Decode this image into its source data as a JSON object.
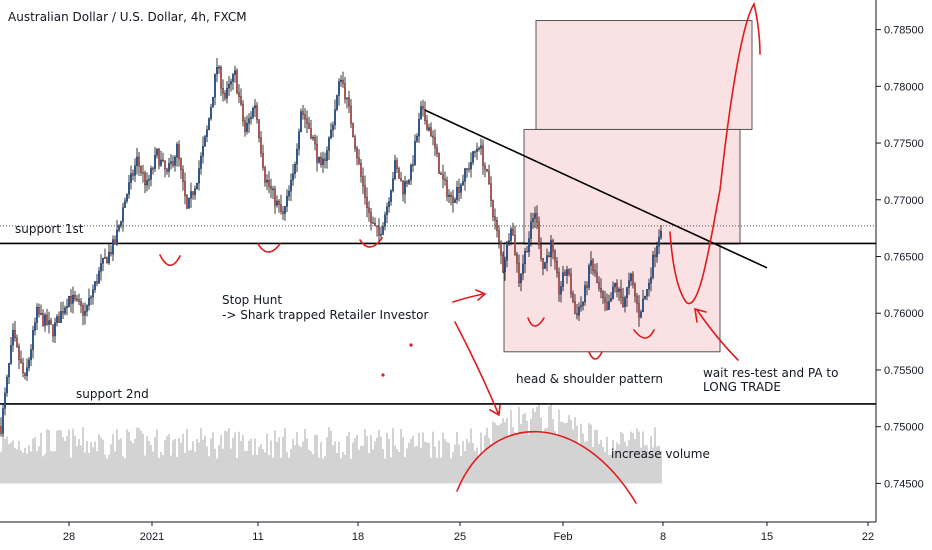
{
  "header": {
    "title": "Australian Dollar / U.S. Dollar, 4h, FXCM"
  },
  "chart_data": {
    "type": "candlestick",
    "title": "Australian Dollar / U.S. Dollar, 4h, FXCM",
    "y_axis": {
      "position": "right",
      "ylim": [
        0.7438,
        0.7862
      ],
      "ticks": [
        "0.78500",
        "0.78000",
        "0.77500",
        "0.77000",
        "0.76500",
        "0.76000",
        "0.75500",
        "0.75000",
        "0.74500"
      ],
      "tick_values": [
        0.785,
        0.78,
        0.775,
        0.77,
        0.765,
        0.76,
        0.755,
        0.75,
        0.745
      ]
    },
    "x_axis": {
      "ticks": [
        "28",
        "2021",
        "11",
        "18",
        "25",
        "Feb",
        "8",
        "15",
        "22"
      ]
    },
    "price_path": [
      [
        0,
        0.75
      ],
      [
        6,
        0.758
      ],
      [
        12,
        0.754
      ],
      [
        18,
        0.76
      ],
      [
        26,
        0.7585
      ],
      [
        34,
        0.7615
      ],
      [
        42,
        0.76
      ],
      [
        50,
        0.764
      ],
      [
        57,
        0.7662
      ],
      [
        62,
        0.77
      ],
      [
        68,
        0.7735
      ],
      [
        73,
        0.7712
      ],
      [
        78,
        0.774
      ],
      [
        83,
        0.7722
      ],
      [
        88,
        0.7745
      ],
      [
        93,
        0.769
      ],
      [
        98,
        0.772
      ],
      [
        103,
        0.776
      ],
      [
        108,
        0.7818
      ],
      [
        112,
        0.779
      ],
      [
        117,
        0.781
      ],
      [
        122,
        0.776
      ],
      [
        127,
        0.7785
      ],
      [
        132,
        0.772
      ],
      [
        137,
        0.77
      ],
      [
        141,
        0.7685
      ],
      [
        146,
        0.772
      ],
      [
        150,
        0.778
      ],
      [
        155,
        0.776
      ],
      [
        160,
        0.7725
      ],
      [
        165,
        0.776
      ],
      [
        170,
        0.781
      ],
      [
        175,
        0.777
      ],
      [
        180,
        0.772
      ],
      [
        185,
        0.768
      ],
      [
        189,
        0.7668
      ],
      [
        193,
        0.7695
      ],
      [
        197,
        0.773
      ],
      [
        201,
        0.771
      ],
      [
        205,
        0.7725
      ],
      [
        210,
        0.7778
      ],
      [
        215,
        0.776
      ],
      [
        220,
        0.772
      ],
      [
        225,
        0.77
      ],
      [
        230,
        0.7715
      ],
      [
        234,
        0.773
      ],
      [
        239,
        0.775
      ],
      [
        243,
        0.772
      ],
      [
        247,
        0.768
      ],
      [
        251,
        0.764
      ],
      [
        255,
        0.768
      ],
      [
        259,
        0.763
      ],
      [
        263,
        0.766
      ],
      [
        267,
        0.769
      ],
      [
        271,
        0.764
      ],
      [
        275,
        0.766
      ],
      [
        279,
        0.762
      ],
      [
        283,
        0.764
      ],
      [
        287,
        0.76
      ],
      [
        291,
        0.761
      ],
      [
        295,
        0.7645
      ],
      [
        299,
        0.762
      ],
      [
        303,
        0.76
      ],
      [
        307,
        0.7625
      ],
      [
        311,
        0.761
      ],
      [
        315,
        0.763
      ],
      [
        319,
        0.76
      ],
      [
        323,
        0.762
      ],
      [
        327,
        0.7655
      ],
      [
        330,
        0.7678
      ]
    ],
    "volume_range": [
      0.745,
      0.7512
    ],
    "series": [
      {
        "name": "support 1st",
        "type": "horizontal_line",
        "value": 0.76615
      },
      {
        "name": "support 2nd",
        "type": "horizontal_line",
        "value": 0.752
      }
    ],
    "trendline": {
      "from": [
        210,
        0.7779
      ],
      "to": [
        385,
        0.764
      ]
    },
    "dotted_price_line": 0.7677,
    "zones": [
      {
        "from": [
          252,
          0.7662
        ],
        "to": [
          360,
          0.7566
        ]
      },
      {
        "from": [
          262,
          0.7762
        ],
        "to": [
          370,
          0.7661
        ]
      },
      {
        "from": [
          268,
          0.7858
        ],
        "to": [
          376,
          0.7762
        ]
      }
    ],
    "annotations": [
      {
        "text": "support 1st",
        "kind": "label"
      },
      {
        "text": "support 2nd",
        "kind": "label"
      },
      {
        "text": "Stop Hunt",
        "kind": "note"
      },
      {
        "text": "-> Shark trapped Retailer Investor",
        "kind": "note"
      },
      {
        "text": "head & shoulder pattern",
        "kind": "note"
      },
      {
        "text": "wait res-test and PA to",
        "kind": "note"
      },
      {
        "text": "LONG TRADE",
        "kind": "note"
      },
      {
        "text": "increase volume",
        "kind": "note"
      }
    ],
    "grid": false
  },
  "colors": {
    "up": "#26a69a",
    "down": "#ef5350",
    "bull_fill": "#1e5fb4",
    "bear_fill": "#e0625f",
    "volume": "#c8c8c8",
    "zone_fill": "#f8d7d9",
    "zone_stroke": "#555555",
    "drawing": "#e01b1b",
    "axis": "#131722"
  }
}
